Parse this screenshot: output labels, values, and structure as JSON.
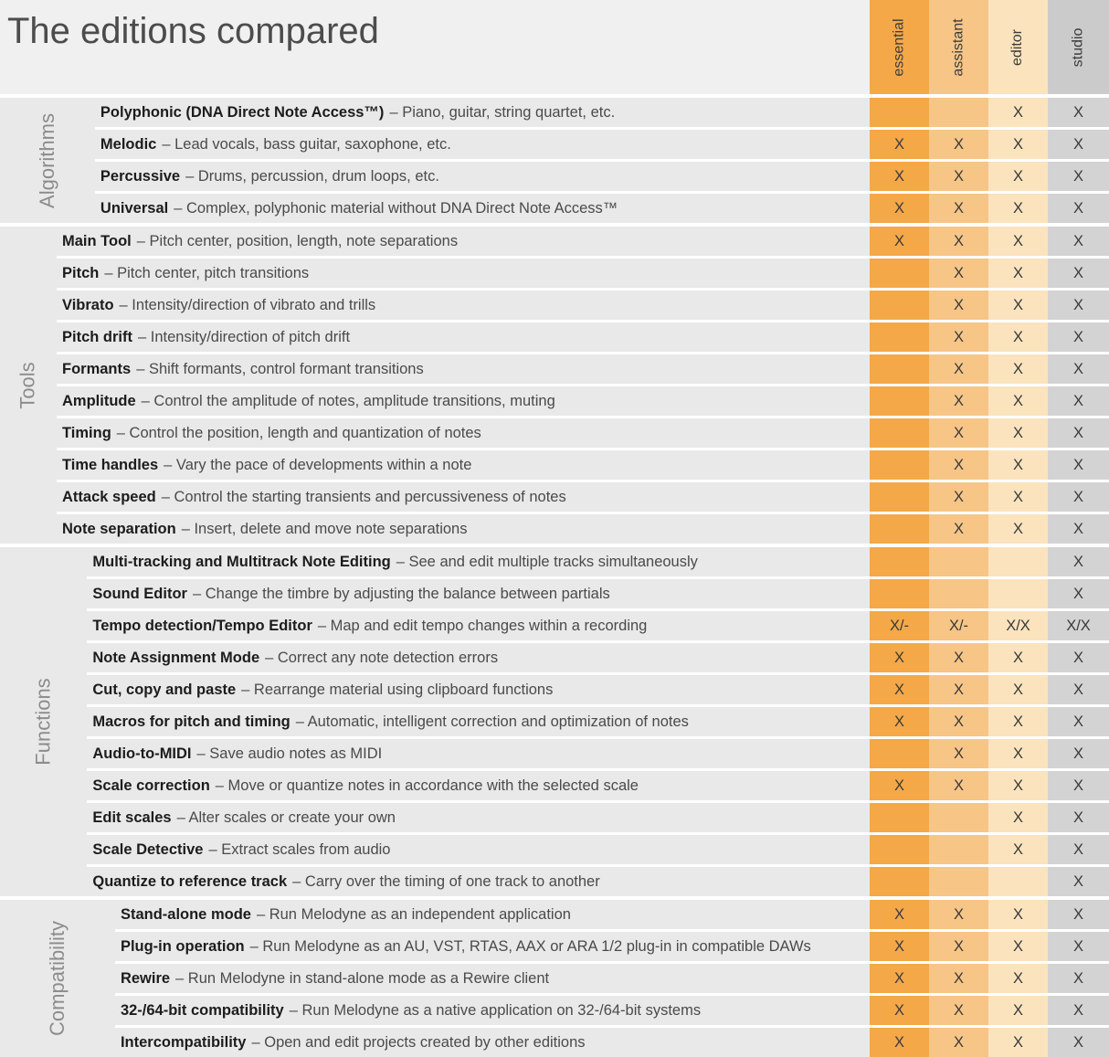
{
  "title": "The editions compared",
  "columns": [
    {
      "id": "essential",
      "label": "essential",
      "color": "#F4A848"
    },
    {
      "id": "assistant",
      "label": "assistant",
      "color": "#F7C586"
    },
    {
      "id": "editor",
      "label": "editor",
      "color": "#FBE3BE"
    },
    {
      "id": "studio",
      "label": "studio",
      "color": "#D3D3D3"
    }
  ],
  "colors": {
    "row_background": "#E9E9E9",
    "page_background": "#F0F0F0",
    "separator": "#FFFFFF",
    "x_mark": "#3A3A3A",
    "section_label": "#8C8C8C"
  },
  "chart_data": {
    "type": "table",
    "title": "The editions compared",
    "column_headers": [
      "essential",
      "assistant",
      "editor",
      "studio"
    ],
    "sections": [
      {
        "label": "Algorithms",
        "rows": [
          {
            "feature": "Polyphonic (DNA Direct Note Access™)",
            "description": "– Piano, guitar, string quartet, etc.",
            "values": [
              "",
              "",
              "X",
              "X"
            ]
          },
          {
            "feature": "Melodic",
            "description": "– Lead vocals, bass guitar, saxophone, etc.",
            "values": [
              "X",
              "X",
              "X",
              "X"
            ]
          },
          {
            "feature": "Percussive",
            "description": "– Drums, percussion, drum loops, etc.",
            "values": [
              "X",
              "X",
              "X",
              "X"
            ]
          },
          {
            "feature": "Universal",
            "description": "– Complex, polyphonic material without DNA Direct Note Access™",
            "values": [
              "X",
              "X",
              "X",
              "X"
            ]
          }
        ]
      },
      {
        "label": "Tools",
        "rows": [
          {
            "feature": "Main Tool",
            "description": "– Pitch center, position, length, note separations",
            "values": [
              "X",
              "X",
              "X",
              "X"
            ]
          },
          {
            "feature": "Pitch",
            "description": "– Pitch center, pitch transitions",
            "values": [
              "",
              "X",
              "X",
              "X"
            ]
          },
          {
            "feature": "Vibrato",
            "description": "– Intensity/direction of vibrato and trills",
            "values": [
              "",
              "X",
              "X",
              "X"
            ]
          },
          {
            "feature": "Pitch drift",
            "description": "– Intensity/direction of pitch drift",
            "values": [
              "",
              "X",
              "X",
              "X"
            ]
          },
          {
            "feature": "Formants",
            "description": "– Shift formants, control formant transitions",
            "values": [
              "",
              "X",
              "X",
              "X"
            ]
          },
          {
            "feature": "Amplitude",
            "description": "– Control the amplitude of notes, amplitude transitions, muting",
            "values": [
              "",
              "X",
              "X",
              "X"
            ]
          },
          {
            "feature": "Timing",
            "description": "– Control the position, length and quantization of notes",
            "values": [
              "",
              "X",
              "X",
              "X"
            ]
          },
          {
            "feature": "Time handles",
            "description": "– Vary the pace of developments within a note",
            "values": [
              "",
              "X",
              "X",
              "X"
            ]
          },
          {
            "feature": "Attack speed",
            "description": "– Control the starting transients and percussiveness of notes",
            "values": [
              "",
              "X",
              "X",
              "X"
            ]
          },
          {
            "feature": "Note separation",
            "description": "– Insert, delete and move note separations",
            "values": [
              "",
              "X",
              "X",
              "X"
            ]
          }
        ]
      },
      {
        "label": "Functions",
        "rows": [
          {
            "feature": "Multi-tracking and Multitrack Note Editing",
            "description": "– See and edit multiple tracks simultaneously",
            "values": [
              "",
              "",
              "",
              "X"
            ]
          },
          {
            "feature": "Sound Editor",
            "description": "– Change the timbre by adjusting the balance between partials",
            "values": [
              "",
              "",
              "",
              "X"
            ]
          },
          {
            "feature": "Tempo detection/Tempo Editor",
            "description": "– Map and edit tempo changes within a recording",
            "values": [
              "X/-",
              "X/-",
              "X/X",
              "X/X"
            ]
          },
          {
            "feature": "Note Assignment Mode",
            "description": "– Correct any note detection errors",
            "values": [
              "X",
              "X",
              "X",
              "X"
            ]
          },
          {
            "feature": "Cut, copy and paste",
            "description": "– Rearrange material using clipboard functions",
            "values": [
              "X",
              "X",
              "X",
              "X"
            ]
          },
          {
            "feature": "Macros for pitch and timing",
            "description": "– Automatic, intelligent correction and optimization of notes",
            "values": [
              "X",
              "X",
              "X",
              "X"
            ]
          },
          {
            "feature": "Audio-to-MIDI",
            "description": "– Save audio notes as MIDI",
            "values": [
              "",
              "X",
              "X",
              "X"
            ]
          },
          {
            "feature": "Scale correction",
            "description": "– Move or quantize notes in accordance with the selected scale",
            "values": [
              "X",
              "X",
              "X",
              "X"
            ]
          },
          {
            "feature": "Edit scales",
            "description": "– Alter scales or create your own",
            "values": [
              "",
              "",
              "X",
              "X"
            ]
          },
          {
            "feature": "Scale Detective",
            "description": "– Extract scales from audio",
            "values": [
              "",
              "",
              "X",
              "X"
            ]
          },
          {
            "feature": "Quantize to reference track",
            "description": "– Carry over the timing of one track to another",
            "values": [
              "",
              "",
              "",
              "X"
            ]
          }
        ]
      },
      {
        "label": "Compatibility",
        "rows": [
          {
            "feature": "Stand-alone mode",
            "description": "– Run Melodyne as an independent application",
            "values": [
              "X",
              "X",
              "X",
              "X"
            ]
          },
          {
            "feature": "Plug-in operation",
            "description": "– Run Melodyne as an AU, VST, RTAS, AAX or ARA 1/2 plug-in in compatible DAWs",
            "values": [
              "X",
              "X",
              "X",
              "X"
            ]
          },
          {
            "feature": "Rewire",
            "description": "– Run Melodyne in stand-alone mode as a Rewire client",
            "values": [
              "X",
              "X",
              "X",
              "X"
            ]
          },
          {
            "feature": "32-/64-bit compatibility",
            "description": "– Run Melodyne as a native application on 32-/64-bit systems",
            "values": [
              "X",
              "X",
              "X",
              "X"
            ]
          },
          {
            "feature": "Intercompatibility",
            "description": "– Open and edit projects created by other editions",
            "values": [
              "X",
              "X",
              "X",
              "X"
            ]
          }
        ]
      }
    ]
  }
}
